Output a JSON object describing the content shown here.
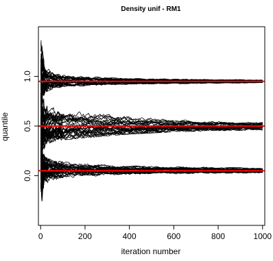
{
  "chart_data": {
    "type": "line",
    "title": "Density unif - RM1",
    "xlabel": "iteration number",
    "ylabel": "quantile",
    "xlim": [
      -10,
      1010
    ],
    "ylim": [
      -0.5,
      1.5
    ],
    "x_ticks": [
      {
        "value": 0,
        "label": "0"
      },
      {
        "value": 200,
        "label": "200"
      },
      {
        "value": 400,
        "label": "400"
      },
      {
        "value": 600,
        "label": "600"
      },
      {
        "value": 800,
        "label": "800"
      },
      {
        "value": 1000,
        "label": "1000"
      }
    ],
    "y_ticks": [
      {
        "value": 0.0,
        "label": "0.0"
      },
      {
        "value": 0.5,
        "label": "0.5"
      },
      {
        "value": 1.0,
        "label": "1.0"
      }
    ],
    "reference_lines": [
      {
        "y": 0.05,
        "color": "#ff0000"
      },
      {
        "y": 0.5,
        "color": "#ff0000"
      },
      {
        "y": 0.95,
        "color": "#ff0000"
      }
    ],
    "line_color": "#000000",
    "series_groups": [
      {
        "target_quantile": 0.95,
        "x": [
          1,
          5,
          10,
          20,
          50,
          100,
          200,
          400,
          600,
          800,
          1000
        ],
        "envelope_lower": [
          -0.33,
          0.62,
          0.78,
          0.84,
          0.87,
          0.89,
          0.9,
          0.92,
          0.925,
          0.93,
          0.935
        ],
        "envelope_upper": [
          1.47,
          1.38,
          1.25,
          1.1,
          1.05,
          1.02,
          1.0,
          0.98,
          0.975,
          0.97,
          0.965
        ]
      },
      {
        "target_quantile": 0.5,
        "x": [
          1,
          5,
          10,
          20,
          50,
          100,
          200,
          400,
          600,
          800,
          1000
        ],
        "envelope_lower": [
          -0.4,
          0.05,
          0.22,
          0.3,
          0.34,
          0.36,
          0.38,
          0.42,
          0.44,
          0.45,
          0.46
        ],
        "envelope_upper": [
          1.4,
          0.95,
          0.8,
          0.75,
          0.7,
          0.68,
          0.65,
          0.62,
          0.57,
          0.55,
          0.54
        ]
      },
      {
        "target_quantile": 0.05,
        "x": [
          1,
          5,
          10,
          20,
          50,
          100,
          200,
          400,
          600,
          800,
          1000
        ],
        "envelope_lower": [
          -0.48,
          -0.45,
          -0.25,
          -0.12,
          -0.07,
          -0.04,
          -0.02,
          0.0,
          0.01,
          0.02,
          0.025
        ],
        "envelope_upper": [
          1.2,
          0.4,
          0.24,
          0.19,
          0.16,
          0.14,
          0.12,
          0.1,
          0.09,
          0.085,
          0.08
        ]
      }
    ],
    "lines_per_group": 30
  }
}
